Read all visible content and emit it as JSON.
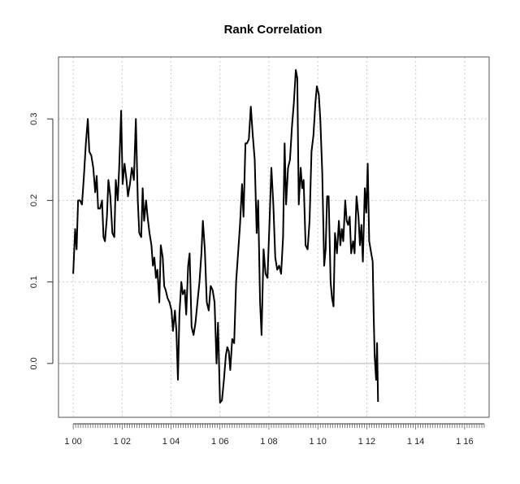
{
  "chart_data": {
    "type": "line",
    "title": "Rank Correlation",
    "xlabel": "",
    "ylabel": "",
    "x_tick_labels": [
      "1 00",
      "1 02",
      "1 04",
      "1 06",
      "1 08",
      "1 10",
      "1 12",
      "1 14",
      "1 16"
    ],
    "x_tick_positions": [
      0,
      2,
      4,
      6,
      8,
      10,
      12,
      14,
      16
    ],
    "y_tick_labels": [
      "0.0",
      "0.1",
      "0.2",
      "0.3"
    ],
    "y_tick_values": [
      0.0,
      0.1,
      0.2,
      0.3
    ],
    "xlim": [
      -0.6,
      17.0
    ],
    "ylim": [
      -0.066,
      0.376
    ],
    "grid": true,
    "reference_line_y": 0.0,
    "series": [
      {
        "values": [
          [
            0.0,
            0.11
          ],
          [
            0.08,
            0.165
          ],
          [
            0.14,
            0.14
          ],
          [
            0.2,
            0.2
          ],
          [
            0.28,
            0.2
          ],
          [
            0.36,
            0.195
          ],
          [
            0.44,
            0.23
          ],
          [
            0.52,
            0.27
          ],
          [
            0.6,
            0.3
          ],
          [
            0.66,
            0.26
          ],
          [
            0.74,
            0.255
          ],
          [
            0.82,
            0.24
          ],
          [
            0.9,
            0.21
          ],
          [
            0.96,
            0.23
          ],
          [
            1.02,
            0.19
          ],
          [
            1.1,
            0.19
          ],
          [
            1.18,
            0.2
          ],
          [
            1.24,
            0.155
          ],
          [
            1.3,
            0.15
          ],
          [
            1.38,
            0.18
          ],
          [
            1.44,
            0.225
          ],
          [
            1.52,
            0.205
          ],
          [
            1.6,
            0.16
          ],
          [
            1.68,
            0.155
          ],
          [
            1.74,
            0.225
          ],
          [
            1.82,
            0.2
          ],
          [
            1.88,
            0.24
          ],
          [
            1.96,
            0.31
          ],
          [
            2.02,
            0.22
          ],
          [
            2.1,
            0.245
          ],
          [
            2.18,
            0.225
          ],
          [
            2.24,
            0.205
          ],
          [
            2.32,
            0.22
          ],
          [
            2.4,
            0.24
          ],
          [
            2.48,
            0.225
          ],
          [
            2.56,
            0.3
          ],
          [
            2.64,
            0.2
          ],
          [
            2.7,
            0.16
          ],
          [
            2.78,
            0.155
          ],
          [
            2.84,
            0.215
          ],
          [
            2.9,
            0.175
          ],
          [
            2.98,
            0.2
          ],
          [
            3.04,
            0.18
          ],
          [
            3.12,
            0.16
          ],
          [
            3.2,
            0.145
          ],
          [
            3.26,
            0.12
          ],
          [
            3.32,
            0.13
          ],
          [
            3.38,
            0.105
          ],
          [
            3.44,
            0.115
          ],
          [
            3.52,
            0.075
          ],
          [
            3.58,
            0.145
          ],
          [
            3.66,
            0.13
          ],
          [
            3.72,
            0.095
          ],
          [
            3.78,
            0.09
          ],
          [
            3.86,
            0.08
          ],
          [
            3.94,
            0.075
          ],
          [
            4.02,
            0.065
          ],
          [
            4.08,
            0.04
          ],
          [
            4.16,
            0.065
          ],
          [
            4.22,
            0.04
          ],
          [
            4.28,
            -0.02
          ],
          [
            4.34,
            0.06
          ],
          [
            4.42,
            0.1
          ],
          [
            4.48,
            0.085
          ],
          [
            4.56,
            0.09
          ],
          [
            4.62,
            0.06
          ],
          [
            4.7,
            0.12
          ],
          [
            4.76,
            0.135
          ],
          [
            4.84,
            0.045
          ],
          [
            4.92,
            0.035
          ],
          [
            5.0,
            0.05
          ],
          [
            5.08,
            0.075
          ],
          [
            5.16,
            0.1
          ],
          [
            5.24,
            0.135
          ],
          [
            5.3,
            0.175
          ],
          [
            5.38,
            0.14
          ],
          [
            5.46,
            0.075
          ],
          [
            5.54,
            0.065
          ],
          [
            5.62,
            0.095
          ],
          [
            5.7,
            0.09
          ],
          [
            5.78,
            0.075
          ],
          [
            5.86,
            0.0
          ],
          [
            5.92,
            0.05
          ],
          [
            6.0,
            -0.048
          ],
          [
            6.08,
            -0.045
          ],
          [
            6.16,
            -0.02
          ],
          [
            6.24,
            0.01
          ],
          [
            6.3,
            0.02
          ],
          [
            6.36,
            0.015
          ],
          [
            6.42,
            -0.008
          ],
          [
            6.5,
            0.03
          ],
          [
            6.58,
            0.025
          ],
          [
            6.66,
            0.1
          ],
          [
            6.74,
            0.135
          ],
          [
            6.82,
            0.17
          ],
          [
            6.9,
            0.22
          ],
          [
            6.96,
            0.18
          ],
          [
            7.04,
            0.27
          ],
          [
            7.1,
            0.27
          ],
          [
            7.18,
            0.275
          ],
          [
            7.26,
            0.315
          ],
          [
            7.34,
            0.28
          ],
          [
            7.42,
            0.25
          ],
          [
            7.5,
            0.16
          ],
          [
            7.56,
            0.2
          ],
          [
            7.64,
            0.075
          ],
          [
            7.7,
            0.035
          ],
          [
            7.78,
            0.14
          ],
          [
            7.86,
            0.11
          ],
          [
            7.94,
            0.105
          ],
          [
            8.02,
            0.17
          ],
          [
            8.1,
            0.24
          ],
          [
            8.18,
            0.195
          ],
          [
            8.26,
            0.13
          ],
          [
            8.34,
            0.115
          ],
          [
            8.42,
            0.12
          ],
          [
            8.5,
            0.11
          ],
          [
            8.58,
            0.155
          ],
          [
            8.64,
            0.27
          ],
          [
            8.7,
            0.195
          ],
          [
            8.78,
            0.24
          ],
          [
            8.86,
            0.25
          ],
          [
            8.94,
            0.29
          ],
          [
            9.02,
            0.32
          ],
          [
            9.1,
            0.36
          ],
          [
            9.16,
            0.35
          ],
          [
            9.22,
            0.195
          ],
          [
            9.3,
            0.24
          ],
          [
            9.36,
            0.215
          ],
          [
            9.42,
            0.225
          ],
          [
            9.5,
            0.145
          ],
          [
            9.58,
            0.14
          ],
          [
            9.66,
            0.175
          ],
          [
            9.74,
            0.26
          ],
          [
            9.82,
            0.28
          ],
          [
            9.9,
            0.32
          ],
          [
            9.96,
            0.34
          ],
          [
            10.04,
            0.33
          ],
          [
            10.1,
            0.3
          ],
          [
            10.18,
            0.235
          ],
          [
            10.26,
            0.12
          ],
          [
            10.32,
            0.14
          ],
          [
            10.38,
            0.205
          ],
          [
            10.44,
            0.205
          ],
          [
            10.52,
            0.1
          ],
          [
            10.58,
            0.08
          ],
          [
            10.64,
            0.07
          ],
          [
            10.7,
            0.16
          ],
          [
            10.78,
            0.135
          ],
          [
            10.86,
            0.175
          ],
          [
            10.92,
            0.145
          ],
          [
            10.98,
            0.165
          ],
          [
            11.04,
            0.15
          ],
          [
            11.12,
            0.2
          ],
          [
            11.18,
            0.175
          ],
          [
            11.24,
            0.17
          ],
          [
            11.3,
            0.18
          ],
          [
            11.36,
            0.135
          ],
          [
            11.44,
            0.15
          ],
          [
            11.5,
            0.135
          ],
          [
            11.58,
            0.205
          ],
          [
            11.66,
            0.18
          ],
          [
            11.72,
            0.145
          ],
          [
            11.78,
            0.17
          ],
          [
            11.84,
            0.125
          ],
          [
            11.92,
            0.215
          ],
          [
            11.98,
            0.185
          ],
          [
            12.04,
            0.245
          ],
          [
            12.1,
            0.15
          ],
          [
            12.18,
            0.135
          ],
          [
            12.24,
            0.125
          ],
          [
            12.28,
            0.06
          ],
          [
            12.32,
            0.01
          ],
          [
            12.38,
            -0.02
          ],
          [
            12.42,
            0.025
          ],
          [
            12.46,
            -0.047
          ]
        ]
      }
    ]
  }
}
